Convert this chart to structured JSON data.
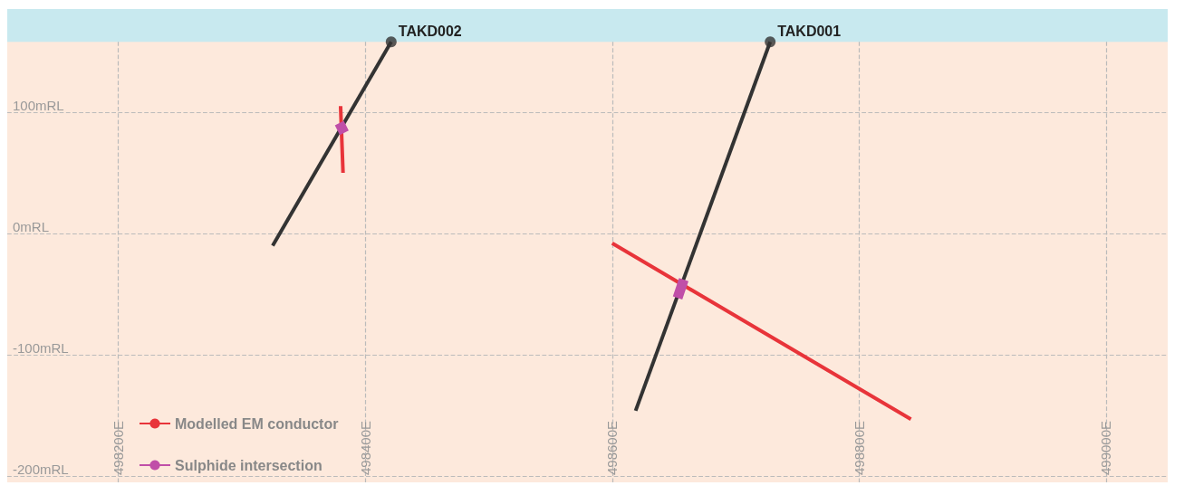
{
  "chart_data": {
    "type": "line",
    "xlim": [
      498110,
      499050
    ],
    "ylim": [
      -205,
      185
    ],
    "xticks": [
      {
        "value": 498200,
        "label": "498200E"
      },
      {
        "value": 498400,
        "label": "498400E"
      },
      {
        "value": 498600,
        "label": "498600E"
      },
      {
        "value": 498800,
        "label": "498800E"
      },
      {
        "value": 499000,
        "label": "499000E"
      }
    ],
    "yticks": [
      {
        "value": -200,
        "label": "-200mRL"
      },
      {
        "value": -100,
        "label": "-100mRL"
      },
      {
        "value": 0,
        "label": "0mRL"
      },
      {
        "value": 100,
        "label": "100mRL"
      }
    ],
    "grid": true,
    "legend": "bottom left",
    "line_style": "solid",
    "bands": [
      {
        "axis": "y",
        "from": 158,
        "to": 185,
        "color": "#c8e9ef"
      }
    ],
    "series": [
      {
        "color": "#333333",
        "x": [
          498421,
          498325
        ],
        "values": [
          158,
          -10
        ]
      },
      {
        "color": "#333333",
        "x": [
          498728,
          498619
        ],
        "values": [
          158,
          -146
        ]
      },
      {
        "type": "scatter",
        "marker": "circle",
        "color": "#333333",
        "x": [
          498421,
          498728
        ],
        "values": [
          158,
          158
        ]
      },
      {
        "name": "Modelled EM conductor",
        "color": "#e8343a",
        "x": [
          498380,
          498382,
          null,
          498600,
          498842
        ],
        "values": [
          105,
          50,
          null,
          -8,
          -153
        ]
      },
      {
        "name": "Sulphide intersection",
        "color": "#c04fa8",
        "x": [
          498379,
          498383,
          null,
          498658,
          498653
        ],
        "values": [
          91,
          83,
          null,
          -38,
          -53
        ]
      }
    ],
    "annotations": [
      {
        "text": "TAKD002",
        "x": 498421,
        "y": 158
      },
      {
        "text": "TAKD001",
        "x": 498728,
        "y": 158
      }
    ]
  }
}
